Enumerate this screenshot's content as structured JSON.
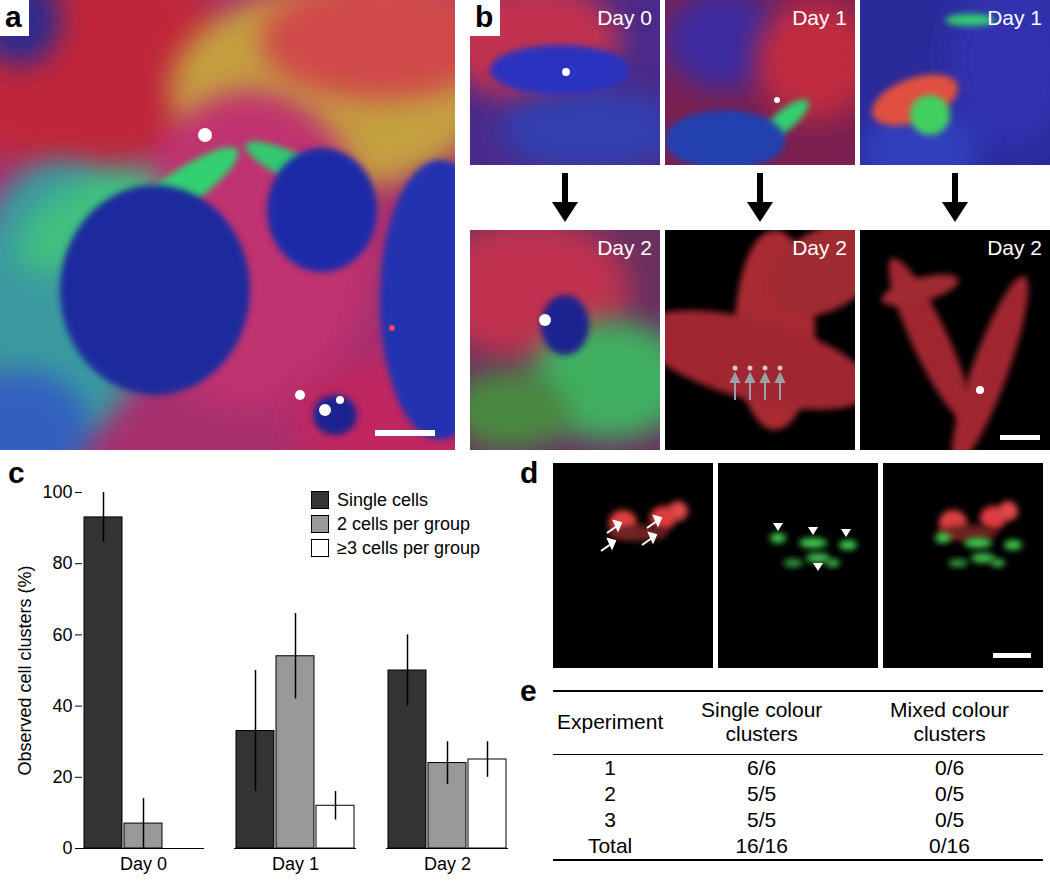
{
  "panels": {
    "a": {
      "label": "a"
    },
    "b": {
      "label": "b",
      "columns": [
        {
          "before": "Day 0",
          "after": "Day 2"
        },
        {
          "before": "Day 1",
          "after": "Day 2"
        },
        {
          "before": "Day 1",
          "after": "Day 2"
        }
      ]
    },
    "c": {
      "label": "c"
    },
    "d": {
      "label": "d"
    },
    "e": {
      "label": "e",
      "table": {
        "header": [
          "Experiment",
          "Single colour clusters",
          "Mixed colour clusters"
        ],
        "rows": [
          [
            "1",
            "6/6",
            "0/6"
          ],
          [
            "2",
            "5/5",
            "0/5"
          ],
          [
            "3",
            "5/5",
            "0/5"
          ],
          [
            "Total",
            "16/16",
            "0/16"
          ]
        ]
      }
    }
  },
  "chart_data": {
    "type": "bar",
    "categories": [
      "Day 0",
      "Day 1",
      "Day 2"
    ],
    "series": [
      {
        "name": "Single cells",
        "color": "#333333",
        "values": [
          93,
          33,
          50
        ],
        "errors": [
          7,
          17,
          10
        ]
      },
      {
        "name": "2 cells per group",
        "color": "#999999",
        "values": [
          7,
          54,
          24
        ],
        "errors": [
          7,
          12,
          6
        ]
      },
      {
        "name": "≥3 cells per group",
        "color": "#ffffff",
        "values": [
          0,
          12,
          25
        ],
        "errors": [
          0,
          4,
          5
        ]
      }
    ],
    "ylabel": "Observed cell clusters (%)",
    "ylim": [
      0,
      100
    ],
    "yticks": [
      0,
      20,
      40,
      60,
      80,
      100
    ],
    "legend": "top-right"
  }
}
